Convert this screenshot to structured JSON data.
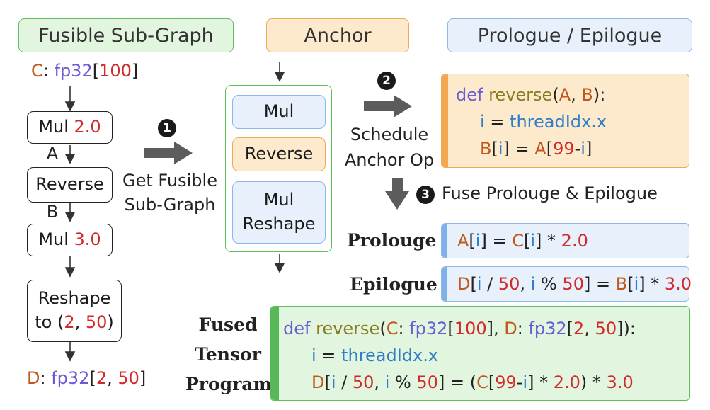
{
  "headers": {
    "fusible": "Fusible Sub-Graph",
    "anchor": "Anchor",
    "prologue_epilogue": "Prologue / Epilogue"
  },
  "left_graph": {
    "input": {
      "var": "C",
      "colon": ":",
      "type": "fp32",
      "lb": "[",
      "dim": "100",
      "rb": "]"
    },
    "nodes": {
      "mul1": {
        "op": "Mul",
        "num": "2.0"
      },
      "reverse": {
        "op": "Reverse"
      },
      "mul2": {
        "op": "Mul",
        "num": "3.0"
      },
      "reshape": {
        "line1": "Reshape",
        "line2_a": "to (",
        "d1": "2",
        "comma": ", ",
        "d2": "50",
        "line2_b": ")"
      }
    },
    "edge_labels": {
      "a": "A",
      "b": "B"
    },
    "output": {
      "var": "D",
      "colon": ":",
      "type": "fp32",
      "lb": "[",
      "d1": "2",
      "comma": ", ",
      "d2": "50",
      "rb": "]"
    }
  },
  "steps": {
    "s1": {
      "num": "1",
      "label_l1": "Get Fusible",
      "label_l2": "Sub-Graph"
    },
    "s2": {
      "num": "2",
      "label_l1": "Schedule",
      "label_l2": "Anchor Op"
    },
    "s3": {
      "num": "3",
      "label": "Fuse Prolouge & Epilogue"
    }
  },
  "anchor_group": {
    "mul": "Mul",
    "reverse": "Reverse",
    "mulreshape_l1": "Mul",
    "mulreshape_l2": "Reshape"
  },
  "anchor_code": {
    "def": "def",
    "fname": "reverse",
    "lp": "(",
    "a": "A",
    "sep": ",  ",
    "b": "B",
    "rp": "):",
    "l2_i": "i",
    "l2_eq": " = ",
    "l2_tid": "threadIdx.x",
    "l3_b": "B",
    "l3_lb": "[",
    "l3_i": "i",
    "l3_rb": "]",
    "l3_eq": " = ",
    "l3_a": "A",
    "l3_lb2": "[",
    "l3_99": "99",
    "l3_minus": "-",
    "l3_i2": "i",
    "l3_rb2": "]"
  },
  "prologue": {
    "label": "Prolouge",
    "a": "A",
    "lb": "[",
    "i": "i",
    "rb": "]",
    "eq": " = ",
    "c": "C",
    "lb2": "[",
    "i2": "i",
    "rb2": "]",
    "mul": " * ",
    "num": "2.0"
  },
  "epilogue": {
    "label": "Epilogue",
    "d": "D",
    "lb": "[",
    "i": "i",
    "div": " / ",
    "n50": "50",
    "comma": ", ",
    "i2": "i",
    "mod": " % ",
    "n50b": "50",
    "rb": "]",
    "eq": " = ",
    "b": "B",
    "lb2": "[",
    "i3": "i",
    "rb2": "]",
    "mul": " * ",
    "num": "3.0"
  },
  "fused": {
    "label_l1": "Fused",
    "label_l2": "Tensor",
    "label_l3": "Program",
    "l1": {
      "def": "def",
      "fname": "reverse",
      "lp": "(",
      "c": "C",
      "c1": ": ",
      "t1": "fp32",
      "lb1": "[",
      "n100": "100",
      "rb1": "]",
      "sep": ", ",
      "d": "D",
      "c2": ": ",
      "t2": "fp32",
      "lb2": "[",
      "n2": "2",
      "comma": ", ",
      "n50": "50",
      "rb2": "]",
      "rp": "):"
    },
    "l2": {
      "i": "i",
      "eq": " = ",
      "tid": "threadIdx.x"
    },
    "l3": {
      "d": "D",
      "lb": "[",
      "i": "i",
      "div": " / ",
      "n50": "50",
      "comma": ", ",
      "i2": "i",
      "mod": " % ",
      "n50b": "50",
      "rb": "]",
      "eq": " = (",
      "c": "C",
      "lb2": "[",
      "n99": "99",
      "minus": "-",
      "i3": "i",
      "rb2": "]",
      "mul1": " * ",
      "num1": "2.0",
      "rp": ") * ",
      "num2": "3.0"
    }
  },
  "colors": {
    "green_fill": "#e2f5de",
    "green_border": "#5ec25a",
    "green_bar": "#58b857",
    "orange_fill": "#fde9cc",
    "orange_border": "#f0a957",
    "orange_bar": "#f4a651",
    "blue_fill": "#e7f0fb",
    "blue_border": "#8cb7e6",
    "blue_bar": "#7fb1e8"
  }
}
